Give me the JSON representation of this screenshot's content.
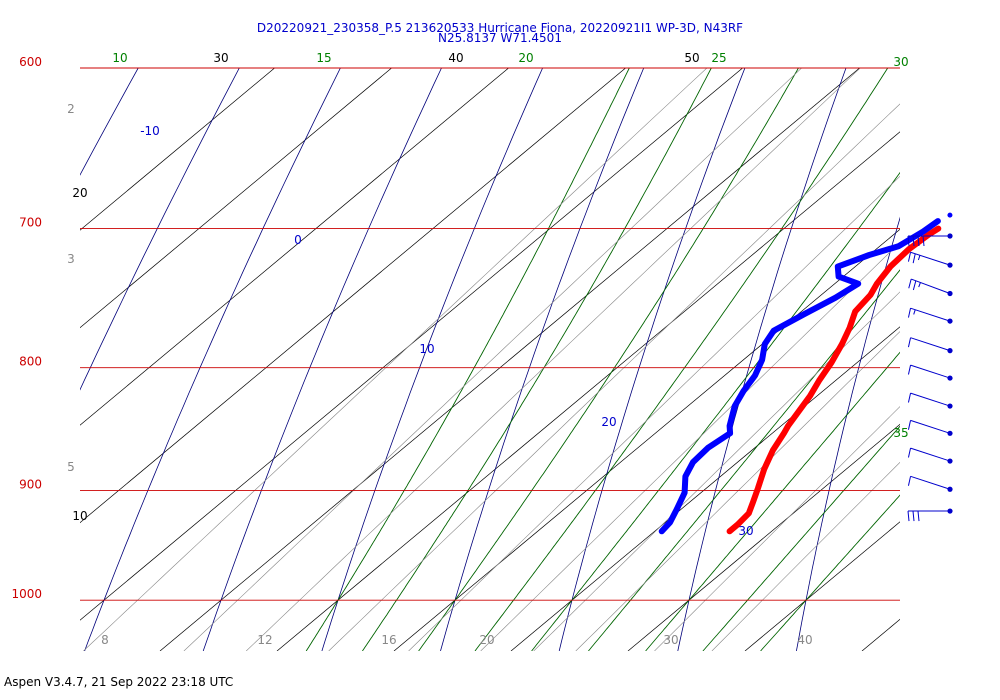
{
  "title_line1": "D20220921_230358_P.5 213620533 Hurricane Fiona, 20220921I1 WP-3D, N43RF",
  "title_line2": "N25.8137 W71.4501",
  "footer": "Aspen V3.4.7, 21 Sep 2022  23:18 UTC",
  "colors": {
    "isobar": "#cc0000",
    "isotherm": "#000000",
    "dry_adiabat": "#00007a",
    "moist_adiabat": "#006400",
    "mixing_ratio": "#888888",
    "temperature_trace": "#ff0000",
    "dewpoint_trace": "#0000ff",
    "wind_barb": "#0000cc"
  },
  "chart_data": {
    "type": "skew-t log-p",
    "pressure_axis": {
      "levels": [
        600,
        700,
        800,
        900,
        1000
      ],
      "labels": [
        "600",
        "700",
        "800",
        "900",
        "1000"
      ],
      "range": [
        600,
        1050
      ]
    },
    "isotherm_labels": [
      "30",
      "40",
      "50",
      "20",
      "10"
    ],
    "dry_adiabat_labels": [
      "-10",
      "0",
      "10",
      "20",
      "30"
    ],
    "moist_adiabat_labels": [
      "10",
      "15",
      "20",
      "25",
      "30",
      "35"
    ],
    "mixing_ratio_labels": [
      "2",
      "3",
      "5",
      "8",
      "12",
      "16",
      "20",
      "30",
      "40"
    ],
    "temperature_profile": [
      {
        "p": 700,
        "t": 13.2
      },
      {
        "p": 704,
        "t": 13.0
      },
      {
        "p": 714,
        "t": 12.8
      },
      {
        "p": 726,
        "t": 13.0
      },
      {
        "p": 738,
        "t": 13.6
      },
      {
        "p": 746,
        "t": 14.2
      },
      {
        "p": 758,
        "t": 14.6
      },
      {
        "p": 770,
        "t": 15.8
      },
      {
        "p": 782,
        "t": 16.8
      },
      {
        "p": 796,
        "t": 17.8
      },
      {
        "p": 810,
        "t": 18.6
      },
      {
        "p": 822,
        "t": 19.4
      },
      {
        "p": 834,
        "t": 20.0
      },
      {
        "p": 846,
        "t": 20.6
      },
      {
        "p": 852,
        "t": 21.0
      },
      {
        "p": 866,
        "t": 21.8
      },
      {
        "p": 882,
        "t": 23.0
      },
      {
        "p": 898,
        "t": 24.4
      },
      {
        "p": 910,
        "t": 25.4
      },
      {
        "p": 920,
        "t": 26.2
      },
      {
        "p": 930,
        "t": 26.4
      },
      {
        "p": 936,
        "t": 26.4
      }
    ],
    "dewpoint_profile": [
      {
        "p": 695,
        "t": 12.4
      },
      {
        "p": 702,
        "t": 12.2
      },
      {
        "p": 712,
        "t": 11.6
      },
      {
        "p": 718,
        "t": 10.0
      },
      {
        "p": 726,
        "t": 8.5
      },
      {
        "p": 733,
        "t": 9.6
      },
      {
        "p": 738,
        "t": 12.0
      },
      {
        "p": 748,
        "t": 11.5
      },
      {
        "p": 760,
        "t": 10.5
      },
      {
        "p": 772,
        "t": 9.6
      },
      {
        "p": 782,
        "t": 10.2
      },
      {
        "p": 794,
        "t": 11.6
      },
      {
        "p": 806,
        "t": 12.6
      },
      {
        "p": 818,
        "t": 13.2
      },
      {
        "p": 830,
        "t": 14.0
      },
      {
        "p": 846,
        "t": 15.6
      },
      {
        "p": 852,
        "t": 16.4
      },
      {
        "p": 864,
        "t": 16.0
      },
      {
        "p": 876,
        "t": 16.2
      },
      {
        "p": 888,
        "t": 17.0
      },
      {
        "p": 902,
        "t": 18.6
      },
      {
        "p": 916,
        "t": 19.6
      },
      {
        "p": 928,
        "t": 20.4
      },
      {
        "p": 936,
        "t": 20.6
      }
    ],
    "wind_barbs": [
      {
        "p": 705,
        "dir_deg": 90,
        "speed_kt": 40
      },
      {
        "p": 725,
        "dir_deg": 50,
        "speed_kt": 25
      },
      {
        "p": 745,
        "dir_deg": 45,
        "speed_kt": 25
      },
      {
        "p": 765,
        "dir_deg": 50,
        "speed_kt": 15
      },
      {
        "p": 787,
        "dir_deg": 50,
        "speed_kt": 10
      },
      {
        "p": 808,
        "dir_deg": 50,
        "speed_kt": 10
      },
      {
        "p": 830,
        "dir_deg": 50,
        "speed_kt": 10
      },
      {
        "p": 852,
        "dir_deg": 50,
        "speed_kt": 10
      },
      {
        "p": 875,
        "dir_deg": 50,
        "speed_kt": 10
      },
      {
        "p": 899,
        "dir_deg": 50,
        "speed_kt": 10
      },
      {
        "p": 918,
        "dir_deg": 90,
        "speed_kt": 30
      }
    ]
  }
}
